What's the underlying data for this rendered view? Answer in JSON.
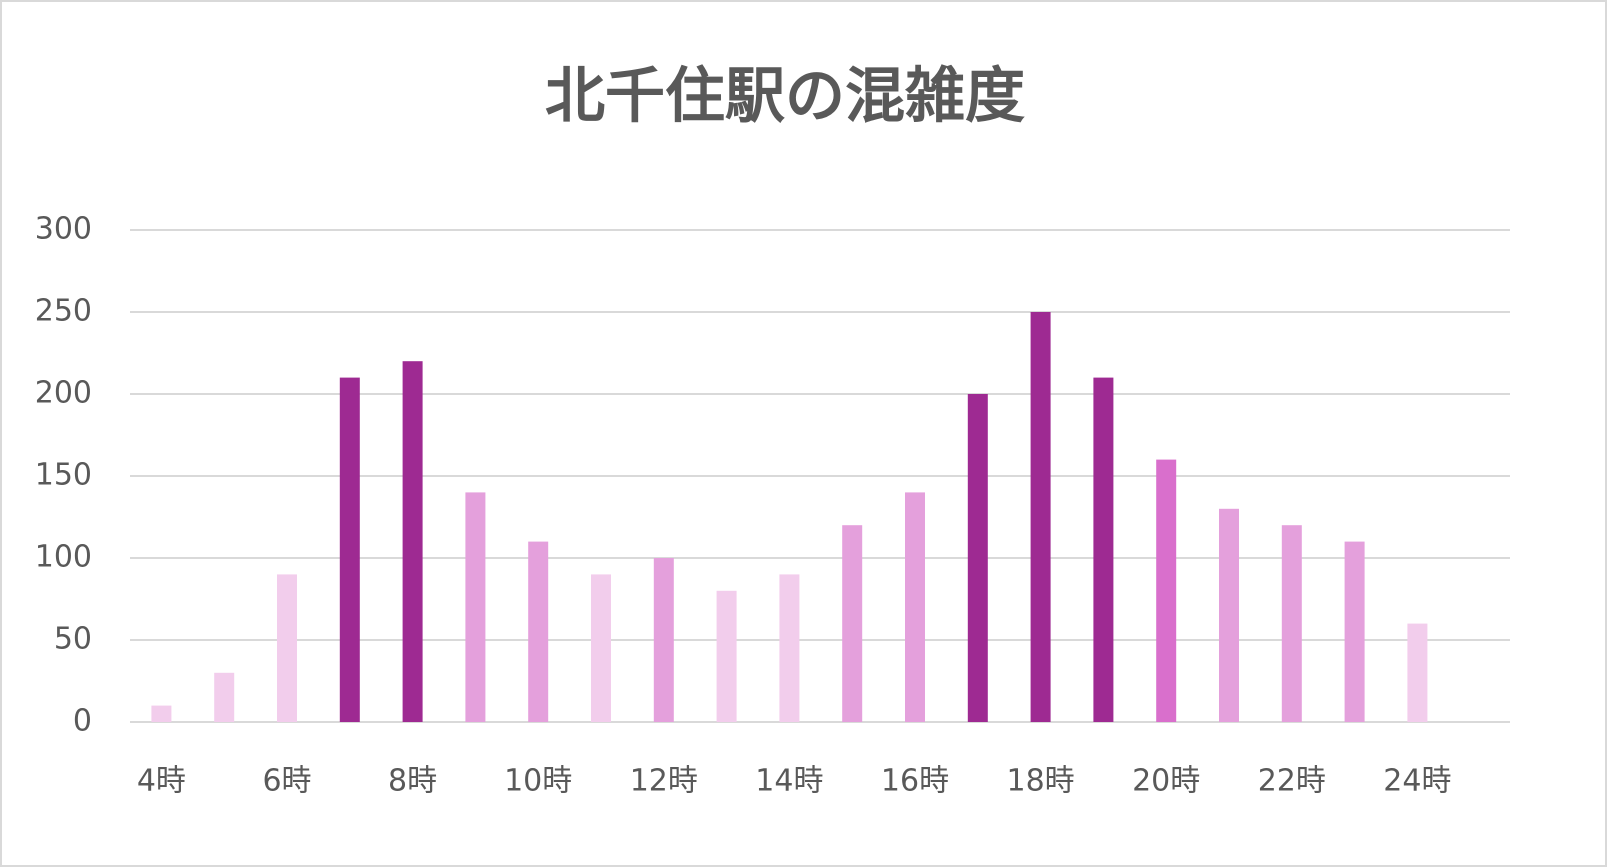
{
  "chart_data": {
    "type": "bar",
    "title": "北千住駅の混雑度",
    "categories": [
      "4時",
      null,
      "6時",
      null,
      "8時",
      null,
      "10時",
      null,
      "12時",
      null,
      "14時",
      null,
      "16時",
      null,
      "18時",
      null,
      "20時",
      null,
      "22時",
      null,
      "24時"
    ],
    "values": [
      10,
      30,
      90,
      210,
      220,
      140,
      110,
      90,
      100,
      80,
      90,
      120,
      140,
      200,
      250,
      210,
      160,
      130,
      120,
      110,
      60
    ],
    "colors": [
      "#f2cdec",
      "#f2cdec",
      "#f2cdec",
      "#9e2a92",
      "#9e2a92",
      "#e4a0dc",
      "#e4a0dc",
      "#f2cdec",
      "#e4a0dc",
      "#f2cdec",
      "#f2cdec",
      "#e4a0dc",
      "#e4a0dc",
      "#9e2a92",
      "#9e2a92",
      "#9e2a92",
      "#d96fcc",
      "#e4a0dc",
      "#e4a0dc",
      "#e4a0dc",
      "#f2cdec"
    ],
    "ylim": [
      0,
      300
    ],
    "yticks": [
      0,
      50,
      100,
      150,
      200,
      250,
      300
    ],
    "grid": true
  }
}
